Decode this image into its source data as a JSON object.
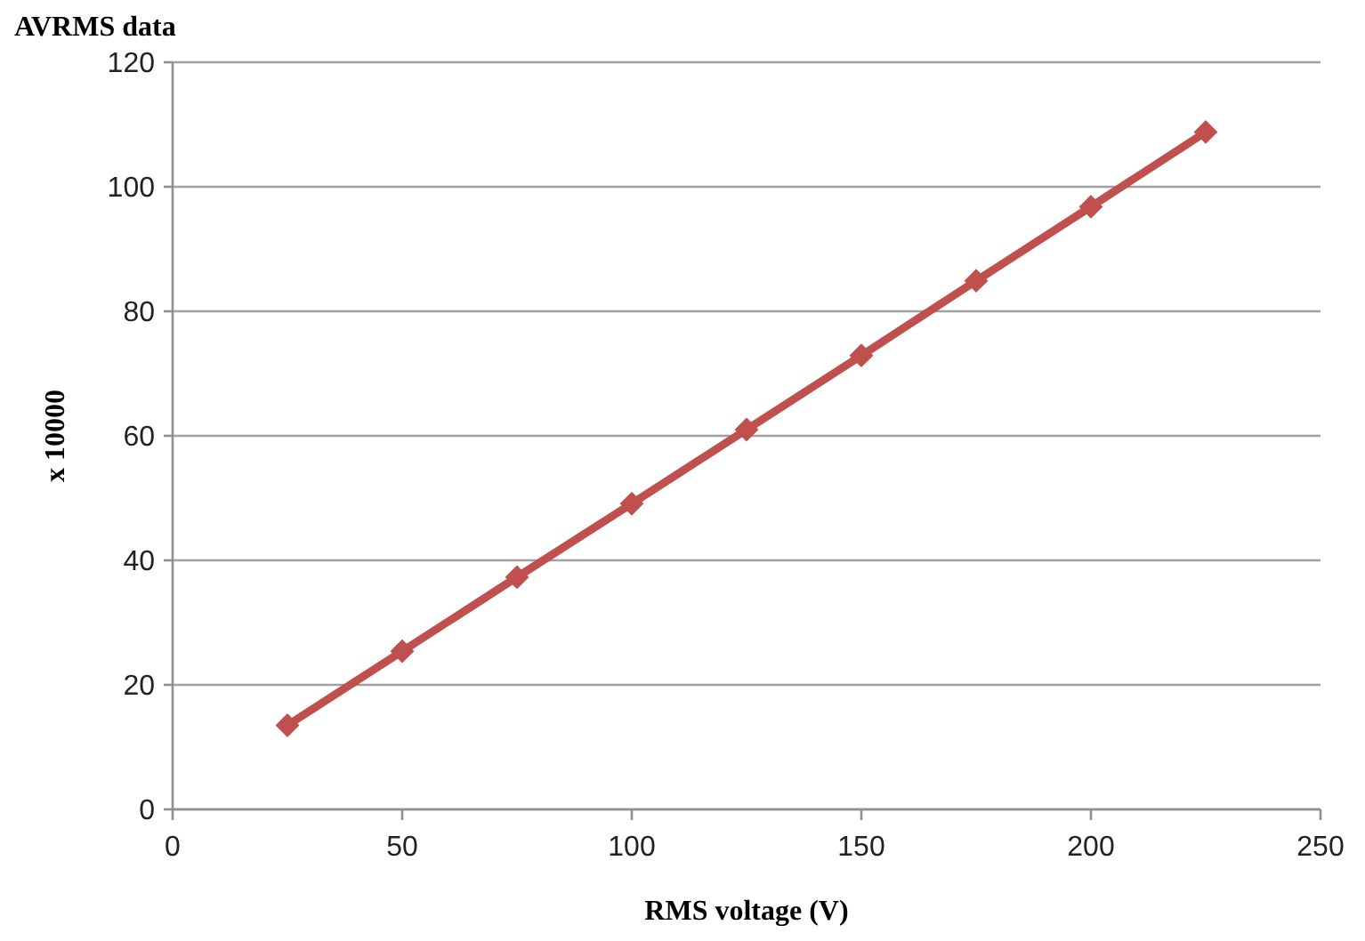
{
  "chart_data": {
    "type": "line",
    "title": "AVRMS data",
    "xlabel": "RMS voltage (V)",
    "ylabel": "x 10000",
    "x": [
      25,
      50,
      75,
      100,
      125,
      150,
      175,
      200,
      225
    ],
    "series": [
      {
        "color": "#c0504d",
        "values": [
          13.5,
          25.4,
          37.3,
          49.1,
          61.0,
          72.9,
          84.9,
          96.8,
          108.8
        ]
      }
    ],
    "xlim": [
      0,
      250
    ],
    "xticks": [
      0,
      50,
      100,
      150,
      200,
      250
    ],
    "ylim": [
      0,
      120
    ],
    "yticks": [
      0,
      20,
      40,
      60,
      80,
      100,
      120
    ],
    "grid": "y",
    "marker": "diamond",
    "line_style": "solid"
  }
}
